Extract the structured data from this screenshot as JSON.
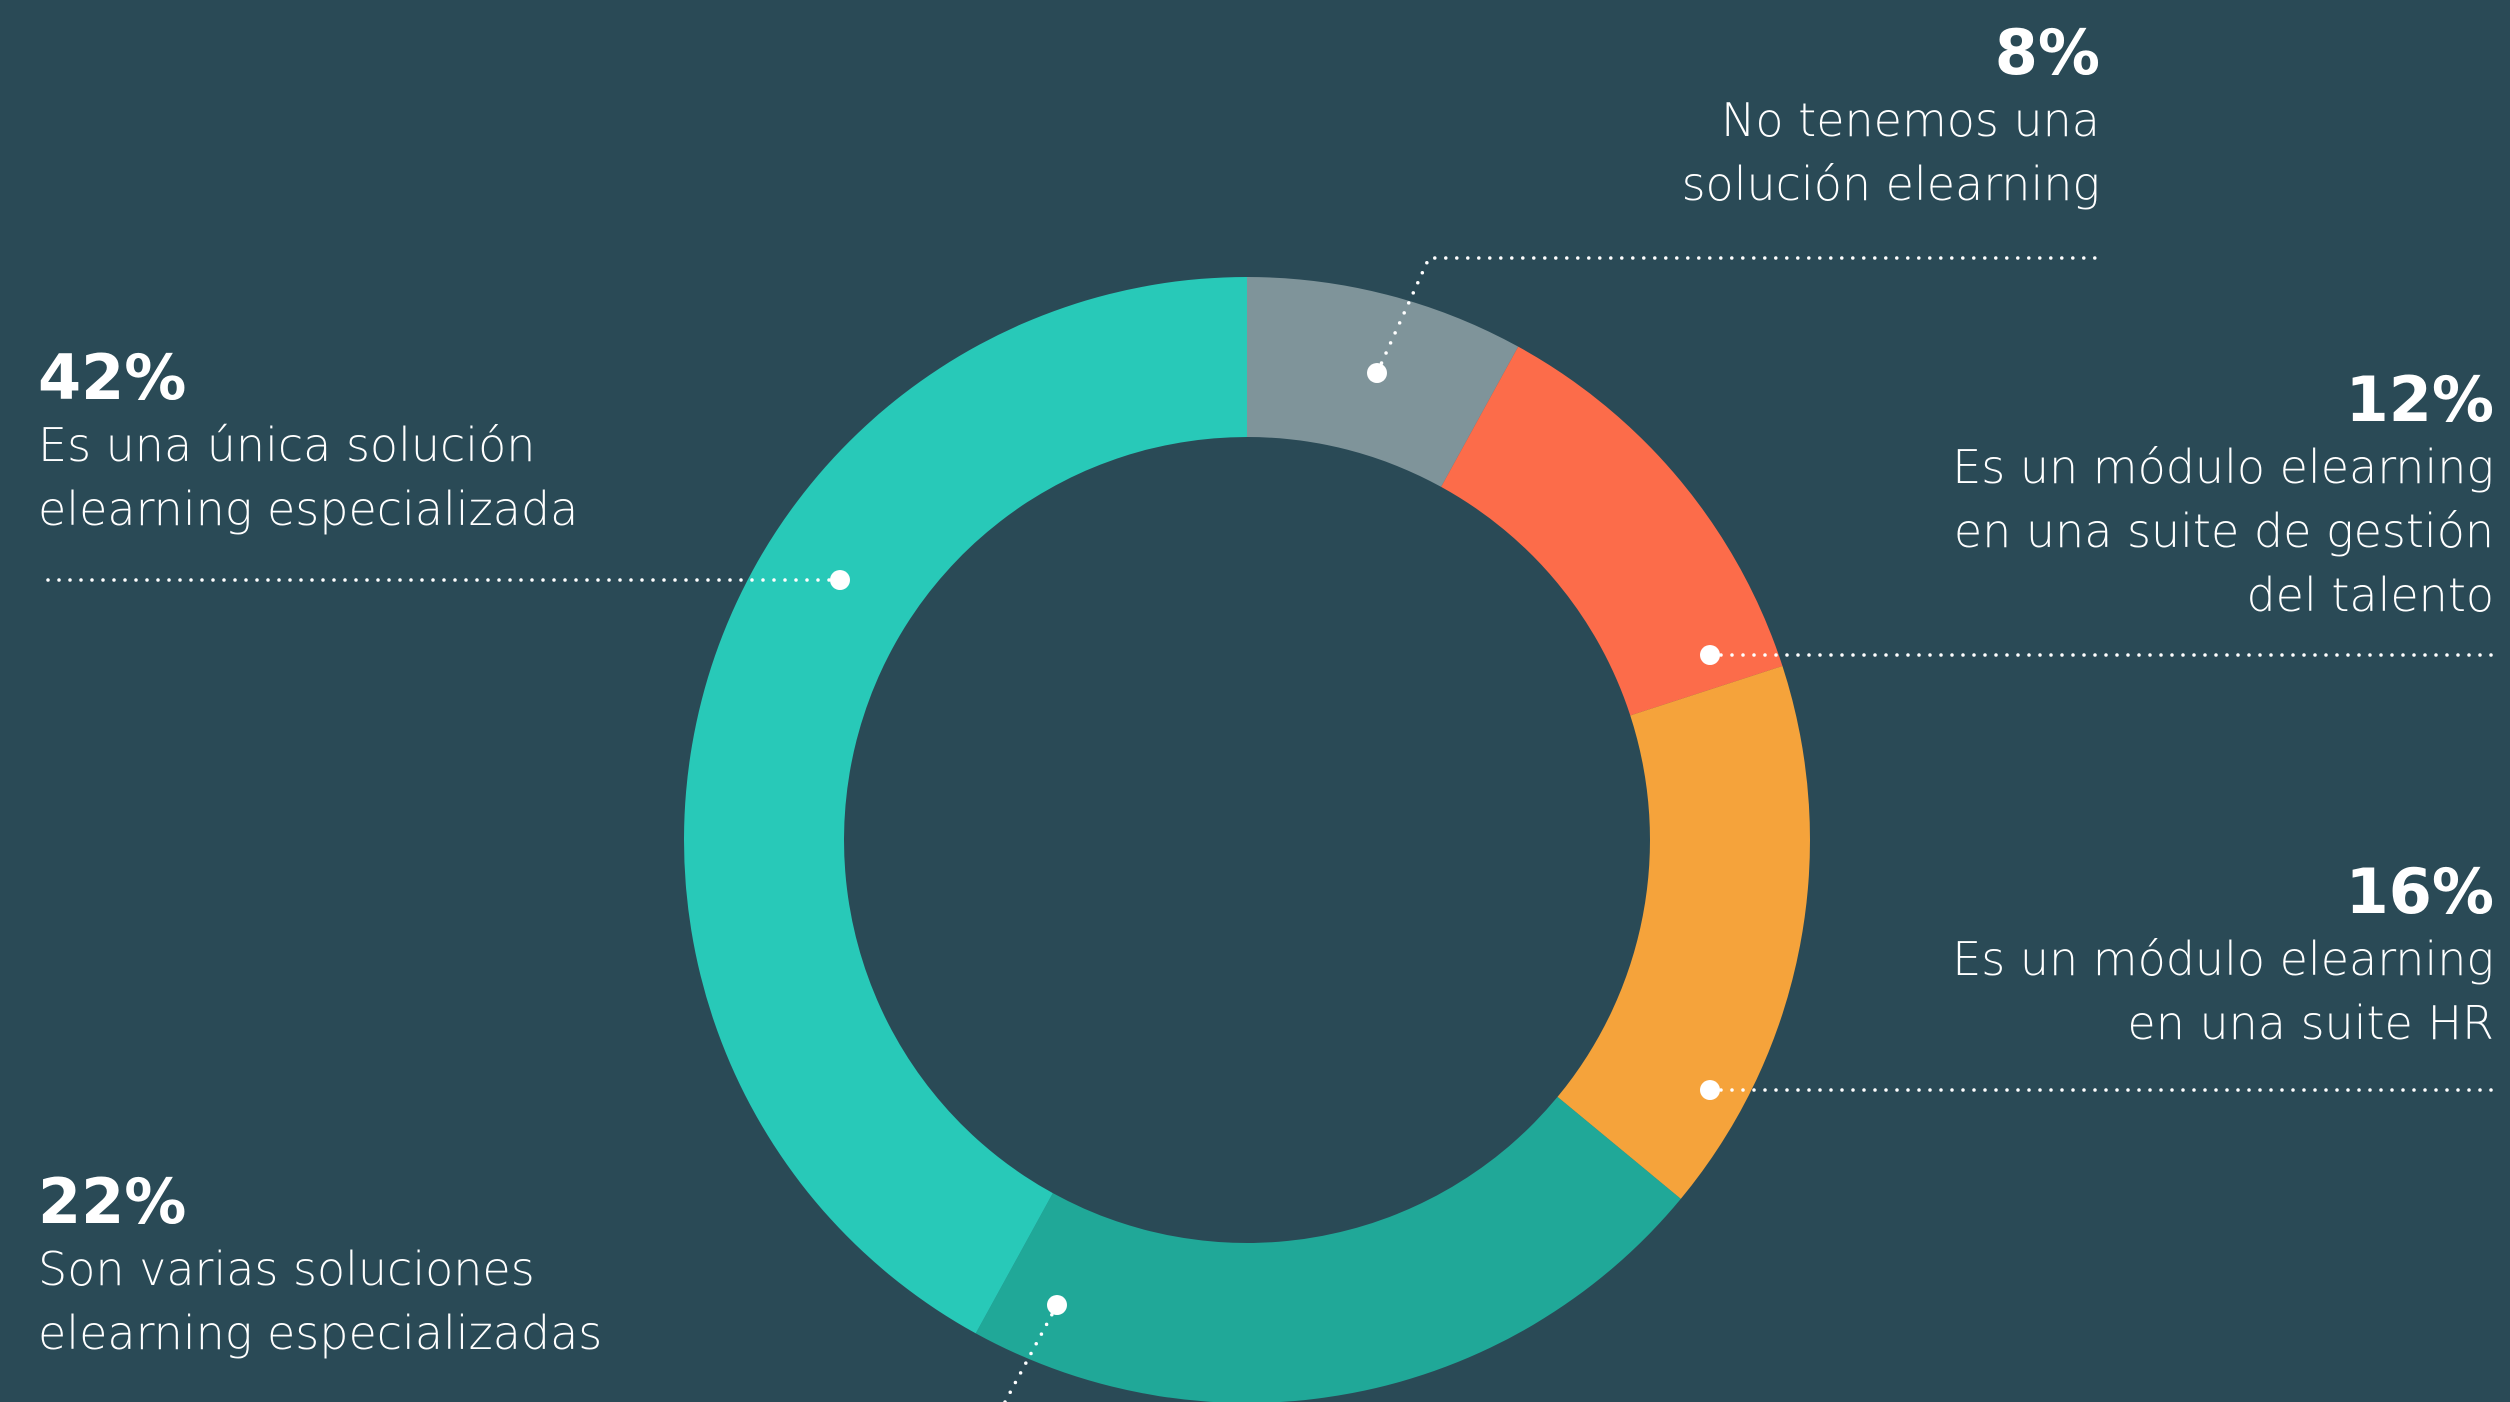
{
  "chart_data": {
    "type": "donut",
    "categories": [
      "No tenemos una\nsolución elearning",
      "Es un módulo elearning\nen una suite de gestión\ndel talento",
      "Es un módulo elearning\nen una suite HR",
      "Son varias soluciones\nelearning especializadas",
      "Es una única solución\nelearning especializada"
    ],
    "values": [
      8,
      12,
      16,
      22,
      42
    ],
    "value_labels": [
      "8%",
      "12%",
      "16%",
      "22%",
      "42%"
    ],
    "colors": [
      "#7f949a",
      "#fc6c4a",
      "#f5a33b",
      "#20a898",
      "#28c9b8"
    ]
  }
}
